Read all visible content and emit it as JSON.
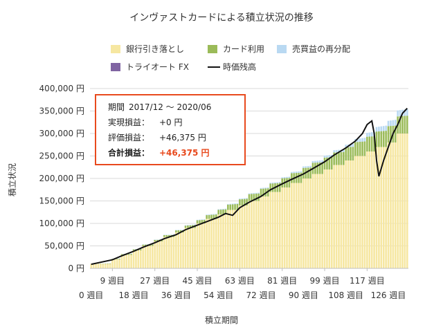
{
  "chart_data": {
    "type": "bar+line",
    "title": "インヴァストカードによる積立状況の推移",
    "ylabel": "積立状況",
    "xlabel": "積立期間",
    "ylim": [
      0,
      400000
    ],
    "y_ticks": [
      "0 円",
      "50,000 円",
      "100,000 円",
      "150,000 円",
      "200,000 円",
      "250,000 円",
      "300,000 円",
      "350,000 円",
      "400,000 円"
    ],
    "x_ticks_upper": [
      "9 週目",
      "27 週目",
      "45 週目",
      "63 週目",
      "81 週目",
      "99 週目",
      "117 週目"
    ],
    "x_ticks_lower": [
      "0 週目",
      "18 週目",
      "36 週目",
      "54 週目",
      "72 週目",
      "90 週目",
      "108 週目",
      "126 週目"
    ],
    "legend_position": "top",
    "series": [
      {
        "name": "銀行引き落とし",
        "color": "#f6e7a1",
        "kind": "bar-stack"
      },
      {
        "name": "カード利用",
        "color": "#9bbb59",
        "kind": "bar-stack"
      },
      {
        "name": "売買益の再分配",
        "color": "#b9d9f2",
        "kind": "bar-stack"
      },
      {
        "name": "トライオート FX",
        "color": "#8064a2",
        "kind": "bar-stack"
      },
      {
        "name": "時価残高",
        "color": "#111111",
        "kind": "line"
      }
    ],
    "weeks_total": 135,
    "bank_steps": [
      [
        0,
        10000
      ],
      [
        9,
        20000
      ],
      [
        13,
        30000
      ],
      [
        18,
        40000
      ],
      [
        22,
        50000
      ],
      [
        27,
        60000
      ],
      [
        31,
        70000
      ],
      [
        36,
        80000
      ],
      [
        40,
        90000
      ],
      [
        45,
        100000
      ],
      [
        49,
        110000
      ],
      [
        54,
        120000
      ],
      [
        58,
        130000
      ],
      [
        63,
        140000
      ],
      [
        67,
        150000
      ],
      [
        72,
        160000
      ],
      [
        76,
        170000
      ],
      [
        81,
        180000
      ],
      [
        85,
        190000
      ],
      [
        90,
        200000
      ],
      [
        94,
        210000
      ],
      [
        99,
        220000
      ],
      [
        103,
        230000
      ],
      [
        108,
        240000
      ],
      [
        112,
        250000
      ],
      [
        117,
        260000
      ],
      [
        121,
        270000
      ],
      [
        126,
        280000
      ],
      [
        130,
        300000
      ]
    ],
    "card_growth": [
      [
        0,
        0
      ],
      [
        40,
        5000
      ],
      [
        80,
        20000
      ],
      [
        110,
        30000
      ],
      [
        135,
        40000
      ]
    ],
    "redistribution_growth": [
      [
        0,
        0
      ],
      [
        80,
        2000
      ],
      [
        110,
        6000
      ],
      [
        135,
        15000
      ]
    ],
    "market_value_points": [
      [
        0,
        9000
      ],
      [
        9,
        19000
      ],
      [
        13,
        28000
      ],
      [
        18,
        38000
      ],
      [
        22,
        47000
      ],
      [
        27,
        57000
      ],
      [
        31,
        66000
      ],
      [
        36,
        75000
      ],
      [
        40,
        86000
      ],
      [
        45,
        96000
      ],
      [
        49,
        104000
      ],
      [
        54,
        114000
      ],
      [
        57,
        122000
      ],
      [
        60,
        118000
      ],
      [
        63,
        135000
      ],
      [
        67,
        147000
      ],
      [
        72,
        160000
      ],
      [
        76,
        175000
      ],
      [
        81,
        188000
      ],
      [
        85,
        198000
      ],
      [
        90,
        210000
      ],
      [
        94,
        222000
      ],
      [
        99,
        237000
      ],
      [
        103,
        252000
      ],
      [
        108,
        268000
      ],
      [
        112,
        283000
      ],
      [
        115,
        300000
      ],
      [
        117,
        320000
      ],
      [
        119,
        328000
      ],
      [
        120,
        300000
      ],
      [
        121,
        240000
      ],
      [
        122,
        205000
      ],
      [
        124,
        240000
      ],
      [
        126,
        270000
      ],
      [
        128,
        300000
      ],
      [
        130,
        320000
      ],
      [
        132,
        345000
      ],
      [
        134,
        356000
      ]
    ]
  },
  "summary_box": {
    "period_label": "期間",
    "period_value": "2017/12 ～ 2020/06",
    "realized_label": "実現損益：",
    "realized_value": "+0 円",
    "valuation_label": "評価損益：",
    "valuation_value": "+46,375 円",
    "total_label": "合計損益：",
    "total_value": "+46,375 円",
    "border_color": "#e8491d"
  }
}
